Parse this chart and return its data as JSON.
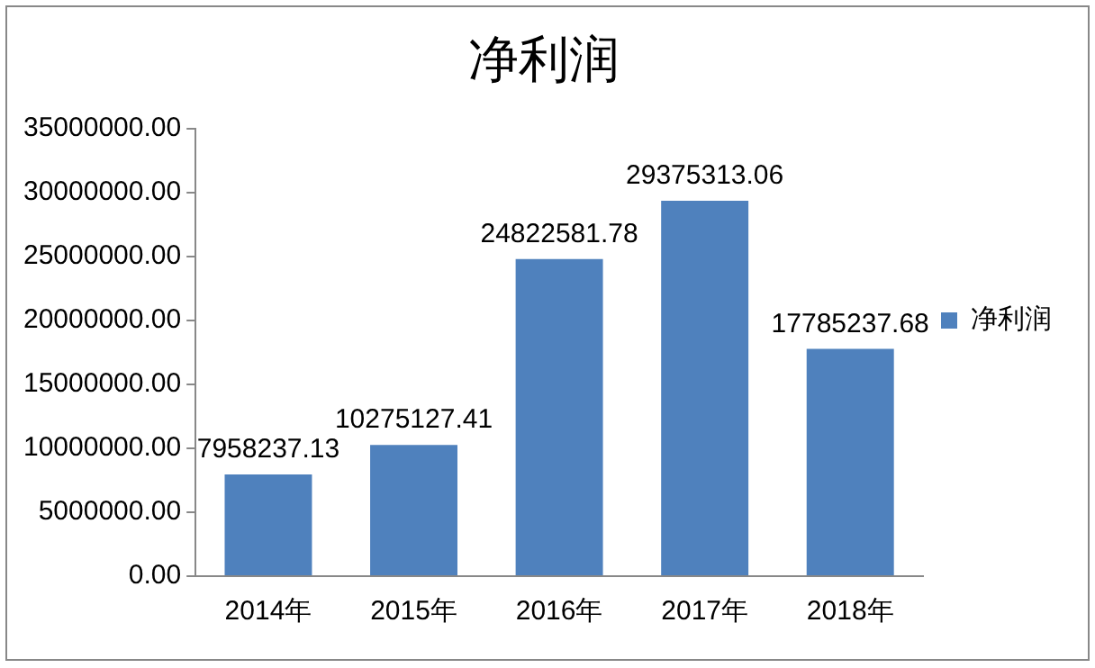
{
  "chart_data": {
    "type": "bar",
    "title": "净利润",
    "categories": [
      "2014年",
      "2015年",
      "2016年",
      "2017年",
      "2018年"
    ],
    "series": [
      {
        "name": "净利润",
        "color": "#4f81bd",
        "values": [
          7958237.13,
          10275127.41,
          24822581.78,
          29375313.06,
          17785237.68
        ]
      }
    ],
    "ylim": [
      0,
      35000000
    ],
    "yticks": [
      {
        "value": 0,
        "label": "0.00"
      },
      {
        "value": 5000000,
        "label": "5000000.00"
      },
      {
        "value": 10000000,
        "label": "10000000.00"
      },
      {
        "value": 15000000,
        "label": "15000000.00"
      },
      {
        "value": 20000000,
        "label": "20000000.00"
      },
      {
        "value": 25000000,
        "label": "25000000.00"
      },
      {
        "value": 30000000,
        "label": "30000000.00"
      },
      {
        "value": 35000000,
        "label": "35000000.00"
      }
    ],
    "data_labels": true,
    "grid": false,
    "legend": "right"
  }
}
